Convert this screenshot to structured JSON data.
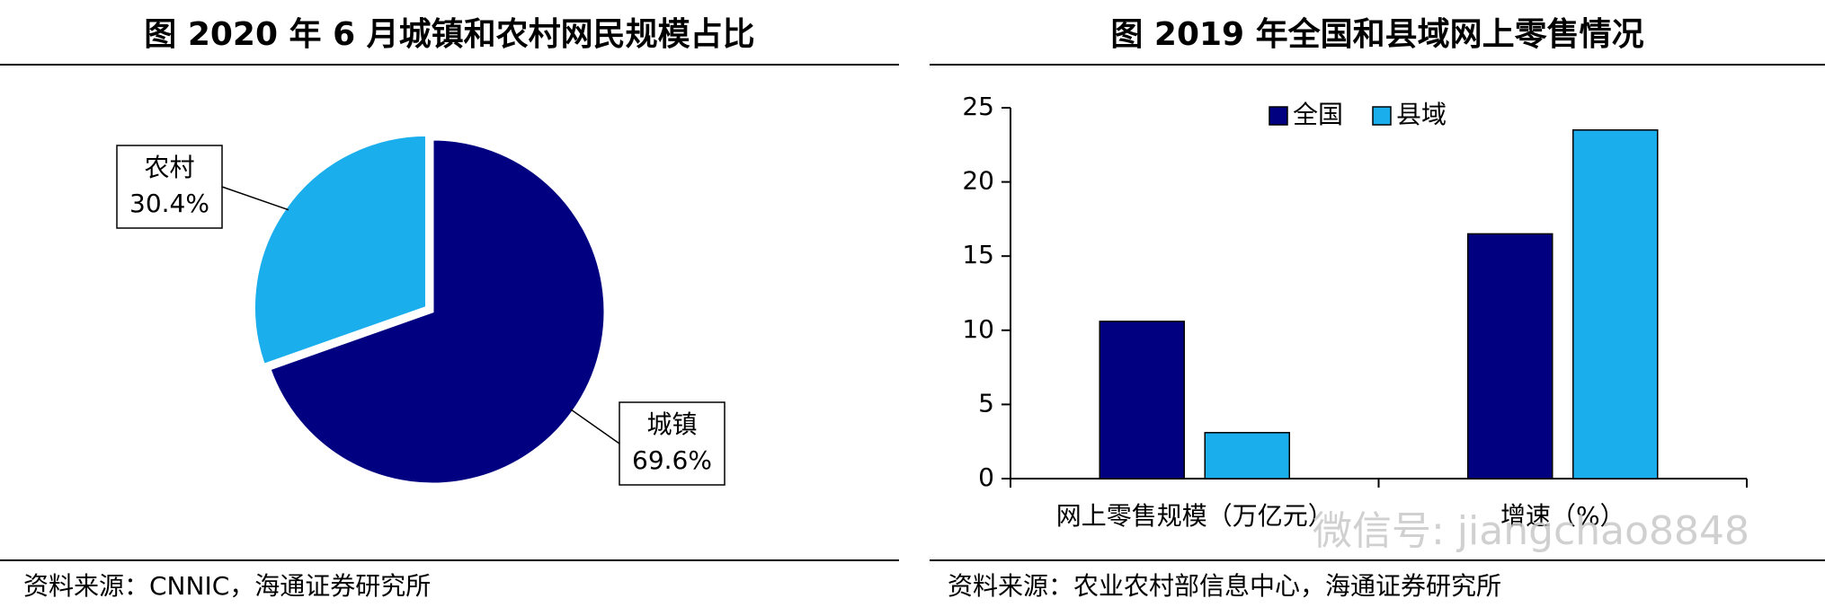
{
  "chart_data": [
    {
      "type": "pie",
      "title": "图 2020 年 6 月城镇和农村网民规模占比",
      "categories": [
        "城镇",
        "农村"
      ],
      "values": [
        69.6,
        30.4
      ],
      "value_labels": [
        "69.6%",
        "30.4%"
      ],
      "colors": [
        "#000080",
        "#1aaeed"
      ],
      "source": "资料来源：CNNIC，海通证券研究所"
    },
    {
      "type": "bar",
      "title": "图 2019 年全国和县域网上零售情况",
      "categories": [
        "网上零售规模（万亿元）",
        "增速（%）"
      ],
      "series": [
        {
          "name": "全国",
          "color": "#000080",
          "values": [
            10.6,
            16.5
          ]
        },
        {
          "name": "县域",
          "color": "#1aaeed",
          "values": [
            3.1,
            23.5
          ]
        }
      ],
      "ylim": [
        0,
        25
      ],
      "yticks": [
        0,
        5,
        10,
        15,
        20,
        25
      ],
      "watermark": "微信号: jiangchao8848",
      "source": "资料来源：农业农村部信息中心，海通证券研究所"
    }
  ]
}
